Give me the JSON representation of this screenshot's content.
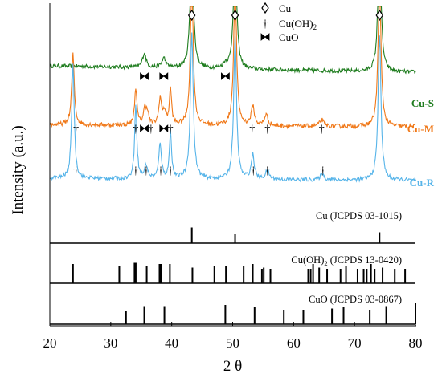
{
  "chart_data": {
    "type": "line",
    "xlabel": "2 θ",
    "ylabel": "Intensity (a.u.)",
    "xlim": [
      20,
      80
    ],
    "xticks": [
      20,
      30,
      40,
      50,
      60,
      70,
      80
    ],
    "grid": false,
    "legend": {
      "position": "top-right",
      "entries": [
        {
          "symbol": "◊",
          "label": "Cu"
        },
        {
          "symbol": "†",
          "label": "Cu(OH)",
          "sub": "2"
        },
        {
          "symbol": "⧗",
          "label": "CuO"
        }
      ]
    },
    "series": [
      {
        "name": "Cu-S",
        "color": "#1f7d1f",
        "baseline": 0.4,
        "slope": -0.15,
        "noise": 0.045,
        "peaks": [
          {
            "x": 35.5,
            "h": 0.32,
            "w": 0.35
          },
          {
            "x": 38.7,
            "h": 0.22,
            "w": 0.35
          },
          {
            "x": 43.3,
            "h": 3.3,
            "w": 0.28
          },
          {
            "x": 48.8,
            "h": 0.1,
            "w": 0.4
          },
          {
            "x": 50.4,
            "h": 3.2,
            "w": 0.28
          },
          {
            "x": 74.1,
            "h": 3.3,
            "w": 0.28
          }
        ]
      },
      {
        "name": "Cu-M",
        "color": "#f07818",
        "baseline": 0.3,
        "slope": -0.05,
        "noise": 0.05,
        "peaks": [
          {
            "x": 23.8,
            "h": 1.6,
            "w": 0.25
          },
          {
            "x": 34.1,
            "h": 0.85,
            "w": 0.22
          },
          {
            "x": 35.6,
            "h": 0.35,
            "w": 0.3
          },
          {
            "x": 36.0,
            "h": 0.25,
            "w": 0.25
          },
          {
            "x": 38.1,
            "h": 0.6,
            "w": 0.25
          },
          {
            "x": 38.8,
            "h": 0.3,
            "w": 0.3
          },
          {
            "x": 39.8,
            "h": 0.8,
            "w": 0.22
          },
          {
            "x": 43.3,
            "h": 3.3,
            "w": 0.28
          },
          {
            "x": 50.4,
            "h": 3.2,
            "w": 0.28
          },
          {
            "x": 53.3,
            "h": 0.45,
            "w": 0.3
          },
          {
            "x": 55.5,
            "h": 0.25,
            "w": 0.35
          },
          {
            "x": 64.6,
            "h": 0.15,
            "w": 0.35
          },
          {
            "x": 74.1,
            "h": 3.3,
            "w": 0.28
          }
        ]
      },
      {
        "name": "Cu-R",
        "color": "#56b4e9",
        "baseline": 0.25,
        "slope": -0.05,
        "noise": 0.045,
        "peaks": [
          {
            "x": 23.8,
            "h": 2.6,
            "w": 0.25
          },
          {
            "x": 34.1,
            "h": 1.7,
            "w": 0.22
          },
          {
            "x": 35.8,
            "h": 0.3,
            "w": 0.3
          },
          {
            "x": 38.1,
            "h": 0.8,
            "w": 0.25
          },
          {
            "x": 39.8,
            "h": 1.05,
            "w": 0.22
          },
          {
            "x": 43.3,
            "h": 3.3,
            "w": 0.28
          },
          {
            "x": 50.4,
            "h": 3.2,
            "w": 0.28
          },
          {
            "x": 53.3,
            "h": 0.55,
            "w": 0.3
          },
          {
            "x": 55.7,
            "h": 0.2,
            "w": 0.35
          },
          {
            "x": 64.7,
            "h": 0.15,
            "w": 0.35
          },
          {
            "x": 74.1,
            "h": 3.3,
            "w": 0.28
          }
        ]
      }
    ],
    "peak_markers": [
      {
        "series": "Cu-S",
        "x": 43.3,
        "symbol": "◊",
        "phase": "Cu"
      },
      {
        "series": "Cu-S",
        "x": 50.4,
        "symbol": "◊",
        "phase": "Cu"
      },
      {
        "series": "Cu-S",
        "x": 74.1,
        "symbol": "◊",
        "phase": "Cu"
      },
      {
        "series": "Cu-S",
        "x": 35.5,
        "symbol": "⧗",
        "phase": "CuO"
      },
      {
        "series": "Cu-S",
        "x": 38.7,
        "symbol": "⧗",
        "phase": "CuO"
      },
      {
        "series": "Cu-S",
        "x": 48.8,
        "symbol": "⧗",
        "phase": "CuO"
      },
      {
        "series": "Cu-M",
        "x": 24.3,
        "symbol": "†",
        "phase": "Cu(OH)2"
      },
      {
        "series": "Cu-M",
        "x": 34.1,
        "symbol": "†",
        "phase": "Cu(OH)2"
      },
      {
        "series": "Cu-M",
        "x": 35.5,
        "symbol": "⧗",
        "phase": "CuO"
      },
      {
        "series": "Cu-M",
        "x": 36.6,
        "symbol": "†",
        "phase": "Cu(OH)2"
      },
      {
        "series": "Cu-M",
        "x": 38.7,
        "symbol": "⧗",
        "phase": "CuO"
      },
      {
        "series": "Cu-M",
        "x": 39.8,
        "symbol": "†",
        "phase": "Cu(OH)2"
      },
      {
        "series": "Cu-M",
        "x": 53.2,
        "symbol": "†",
        "phase": "Cu(OH)2"
      },
      {
        "series": "Cu-M",
        "x": 55.7,
        "symbol": "†",
        "phase": "Cu(OH)2"
      },
      {
        "series": "Cu-M",
        "x": 64.6,
        "symbol": "†",
        "phase": "Cu(OH)2"
      },
      {
        "series": "Cu-R",
        "x": 24.3,
        "symbol": "†",
        "phase": "Cu(OH)2"
      },
      {
        "series": "Cu-R",
        "x": 34.1,
        "symbol": "†",
        "phase": "Cu(OH)2"
      },
      {
        "series": "Cu-R",
        "x": 35.8,
        "symbol": "†",
        "phase": "Cu(OH)2"
      },
      {
        "series": "Cu-R",
        "x": 38.2,
        "symbol": "†",
        "phase": "Cu(OH)2"
      },
      {
        "series": "Cu-R",
        "x": 39.8,
        "symbol": "†",
        "phase": "Cu(OH)2"
      },
      {
        "series": "Cu-R",
        "x": 53.4,
        "symbol": "†",
        "phase": "Cu(OH)2"
      },
      {
        "series": "Cu-R",
        "x": 55.7,
        "symbol": "†",
        "phase": "Cu(OH)2"
      },
      {
        "series": "Cu-R",
        "x": 64.8,
        "symbol": "†",
        "phase": "Cu(OH)2"
      }
    ],
    "references": [
      {
        "label": "Cu (JCPDS 03-1015)",
        "sub": "",
        "lines": [
          {
            "x": 43.3,
            "h": 0.65
          },
          {
            "x": 50.4,
            "h": 0.4
          },
          {
            "x": 74.1,
            "h": 0.45
          }
        ]
      },
      {
        "label": "Cu(OH)",
        "sub": "2",
        "label_after": " (JCPDS 13-0420)",
        "lines": [
          {
            "x": 23.8,
            "h": 0.8
          },
          {
            "x": 31.4,
            "h": 0.7
          },
          {
            "x": 33.9,
            "h": 0.85
          },
          {
            "x": 34.1,
            "h": 0.85
          },
          {
            "x": 35.9,
            "h": 0.7
          },
          {
            "x": 38.0,
            "h": 0.8
          },
          {
            "x": 38.2,
            "h": 0.8
          },
          {
            "x": 39.7,
            "h": 0.8
          },
          {
            "x": 43.4,
            "h": 0.65
          },
          {
            "x": 47.0,
            "h": 0.7
          },
          {
            "x": 48.9,
            "h": 0.7
          },
          {
            "x": 51.8,
            "h": 0.7
          },
          {
            "x": 53.3,
            "h": 0.8
          },
          {
            "x": 54.8,
            "h": 0.6
          },
          {
            "x": 55.1,
            "h": 0.65
          },
          {
            "x": 56.2,
            "h": 0.6
          },
          {
            "x": 62.4,
            "h": 0.6
          },
          {
            "x": 62.8,
            "h": 0.6
          },
          {
            "x": 63.2,
            "h": 0.8
          },
          {
            "x": 64.2,
            "h": 0.65
          },
          {
            "x": 65.5,
            "h": 0.6
          },
          {
            "x": 67.7,
            "h": 0.6
          },
          {
            "x": 68.6,
            "h": 0.7
          },
          {
            "x": 70.5,
            "h": 0.6
          },
          {
            "x": 71.5,
            "h": 0.6
          },
          {
            "x": 72.0,
            "h": 0.6
          },
          {
            "x": 72.7,
            "h": 0.8
          },
          {
            "x": 73.3,
            "h": 0.6
          },
          {
            "x": 74.6,
            "h": 0.65
          },
          {
            "x": 76.6,
            "h": 0.6
          },
          {
            "x": 78.3,
            "h": 0.6
          }
        ]
      },
      {
        "label": "CuO (JCPDS 03-0867)",
        "sub": "",
        "lines": [
          {
            "x": 32.5,
            "h": 0.55
          },
          {
            "x": 35.5,
            "h": 0.75
          },
          {
            "x": 38.8,
            "h": 0.75
          },
          {
            "x": 48.8,
            "h": 0.8
          },
          {
            "x": 53.6,
            "h": 0.7
          },
          {
            "x": 58.4,
            "h": 0.6
          },
          {
            "x": 61.6,
            "h": 0.6
          },
          {
            "x": 66.3,
            "h": 0.65
          },
          {
            "x": 68.2,
            "h": 0.7
          },
          {
            "x": 72.5,
            "h": 0.6
          },
          {
            "x": 75.2,
            "h": 0.75
          },
          {
            "x": 80.0,
            "h": 0.9
          }
        ]
      }
    ]
  }
}
